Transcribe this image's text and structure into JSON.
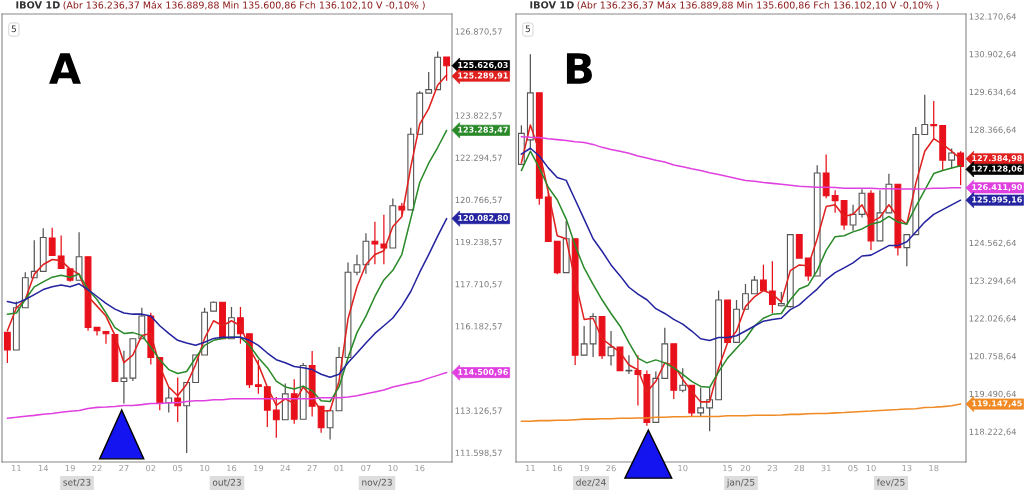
{
  "chart_data": [
    {
      "type": "candlestick",
      "title": "IBOV 1D",
      "categories": [
        null,
        "11",
        null,
        null,
        "14",
        null,
        null,
        "19",
        null,
        null,
        "22",
        null,
        null,
        "27",
        null,
        null,
        "02",
        null,
        null,
        "05",
        null,
        null,
        "10",
        null,
        null,
        "16",
        null,
        null,
        "19",
        null,
        null,
        "24",
        null,
        null,
        "27",
        null,
        null,
        "01",
        null,
        null,
        "07",
        null,
        null,
        "10",
        null,
        null,
        "16",
        null,
        null,
        null
      ],
      "ohlc": [
        [
          115960,
          115960,
          114850,
          115320
        ],
        [
          115320,
          117080,
          115320,
          116850
        ],
        [
          116850,
          118140,
          116850,
          117940
        ],
        [
          117940,
          119300,
          117940,
          118170
        ],
        [
          118170,
          119730,
          118170,
          119400
        ],
        [
          119380,
          119750,
          118750,
          118750
        ],
        [
          118730,
          119470,
          118280,
          118280
        ],
        [
          118260,
          118260,
          117790,
          117850
        ],
        [
          117850,
          119590,
          117850,
          118700
        ],
        [
          118700,
          118700,
          116020,
          116140
        ],
        [
          116140,
          116140,
          115850,
          116020
        ],
        [
          115990,
          115990,
          115550,
          115910
        ],
        [
          115880,
          115880,
          114180,
          114180
        ],
        [
          114180,
          115290,
          113380,
          114300
        ],
        [
          114300,
          115730,
          114200,
          115730
        ],
        [
          115730,
          116850,
          115730,
          116550
        ],
        [
          116550,
          116670,
          114790,
          115050
        ],
        [
          115050,
          115050,
          113140,
          113410
        ],
        [
          113410,
          113970,
          113050,
          113580
        ],
        [
          113580,
          114320,
          112710,
          113300
        ],
        [
          113300,
          114140,
          111590,
          114140
        ],
        [
          114140,
          115140,
          114140,
          115140
        ],
        [
          115140,
          116850,
          115140,
          116690
        ],
        [
          116730,
          117080,
          116730,
          117050
        ],
        [
          117050,
          117050,
          115730,
          115730
        ],
        [
          115730,
          116880,
          115730,
          116490
        ],
        [
          116490,
          116880,
          115550,
          115910
        ],
        [
          115910,
          115910,
          113940,
          114060
        ],
        [
          114060,
          114970,
          113730,
          114000
        ],
        [
          113990,
          113990,
          112530,
          113140
        ],
        [
          113140,
          113620,
          112140,
          112790
        ],
        [
          112790,
          114110,
          112790,
          113730
        ],
        [
          113730,
          114260,
          112650,
          112810
        ],
        [
          112810,
          114850,
          112810,
          114760
        ],
        [
          114760,
          115280,
          112910,
          113280
        ],
        [
          113280,
          113280,
          112320,
          112500
        ],
        [
          112500,
          113120,
          112080,
          113120
        ],
        [
          113120,
          115430,
          113120,
          115050
        ],
        [
          115050,
          118490,
          115050,
          118140
        ],
        [
          118140,
          118770,
          118030,
          118410
        ],
        [
          118410,
          119550,
          118080,
          119260
        ],
        [
          119260,
          119970,
          118430,
          119160
        ],
        [
          119160,
          120220,
          118430,
          119020
        ],
        [
          119020,
          120810,
          119020,
          120550
        ],
        [
          120530,
          120650,
          120200,
          120400
        ],
        [
          120400,
          123380,
          120400,
          123140
        ],
        [
          123140,
          124700,
          123140,
          124630
        ],
        [
          124630,
          125400,
          124630,
          124760
        ],
        [
          124760,
          126140,
          124760,
          125930
        ],
        [
          125940,
          125940,
          125080,
          125626.03
        ]
      ],
      "series": [
        {
          "type": "line",
          "color": "#e0201e",
          "value_labels": [
            null,
            null,
            null,
            null,
            null,
            null,
            null,
            null,
            null,
            null,
            null,
            null,
            null,
            null,
            null,
            null,
            null,
            null,
            null,
            null,
            null,
            null,
            null,
            null,
            null,
            null,
            null,
            null,
            null,
            null,
            null,
            null,
            null,
            null,
            null,
            null,
            null,
            null,
            null,
            null,
            null,
            null,
            null,
            null,
            null,
            null,
            null,
            null,
            null,
            "125.289,91"
          ],
          "values": [
            116020,
            116840,
            117150,
            118070,
            118420,
            118600,
            118560,
            118250,
            118070,
            117260,
            116910,
            116550,
            115850,
            114860,
            115140,
            115850,
            115920,
            114720,
            113980,
            113660,
            114080,
            114790,
            115740,
            116380,
            116200,
            116380,
            116200,
            115390,
            114790,
            113980,
            113310,
            113550,
            113380,
            113980,
            113620,
            113100,
            113130,
            114190,
            116450,
            117610,
            118420,
            118780,
            118920,
            119800,
            120150,
            121950,
            123510,
            124070,
            124920,
            125289.91
          ]
        },
        {
          "type": "line",
          "color": "#2a8a2a",
          "value_labels": [
            null,
            null,
            null,
            null,
            null,
            null,
            null,
            null,
            null,
            null,
            null,
            null,
            null,
            null,
            null,
            null,
            null,
            null,
            null,
            null,
            null,
            null,
            null,
            null,
            null,
            null,
            null,
            null,
            null,
            null,
            null,
            null,
            null,
            null,
            null,
            null,
            null,
            null,
            null,
            null,
            null,
            null,
            null,
            null,
            null,
            null,
            null,
            null,
            null,
            "123.283,47"
          ],
          "values": [
            116620,
            116660,
            117150,
            117610,
            117790,
            117960,
            118030,
            117960,
            118070,
            117510,
            117150,
            116660,
            116130,
            115920,
            115950,
            115850,
            115420,
            114970,
            114610,
            114470,
            114540,
            115040,
            115490,
            115670,
            115740,
            115780,
            115780,
            115490,
            115040,
            114680,
            114190,
            113980,
            113910,
            114010,
            113840,
            113480,
            113450,
            113980,
            115040,
            115950,
            116550,
            117260,
            117860,
            118210,
            118780,
            120080,
            121390,
            122090,
            122660,
            123283.47
          ]
        },
        {
          "type": "line",
          "color": "#2424a0",
          "value_labels": [
            null,
            null,
            null,
            null,
            null,
            null,
            null,
            null,
            null,
            null,
            null,
            null,
            null,
            null,
            null,
            null,
            null,
            null,
            null,
            null,
            null,
            null,
            null,
            null,
            null,
            null,
            null,
            null,
            null,
            null,
            null,
            null,
            null,
            null,
            null,
            null,
            null,
            null,
            null,
            null,
            null,
            null,
            null,
            null,
            null,
            null,
            null,
            null,
            null,
            "120.082,80"
          ],
          "values": [
            117080,
            117010,
            117150,
            117330,
            117510,
            117610,
            117680,
            117610,
            117720,
            117510,
            117260,
            117010,
            116800,
            116660,
            116620,
            116620,
            116550,
            116200,
            115920,
            115670,
            115570,
            115490,
            115600,
            115740,
            115780,
            115780,
            115780,
            115670,
            115490,
            115210,
            114970,
            114860,
            114720,
            114680,
            114610,
            114440,
            114330,
            114440,
            114860,
            115210,
            115570,
            115920,
            116200,
            116480,
            116910,
            117440,
            118140,
            118780,
            119450,
            120082.8
          ]
        },
        {
          "type": "line",
          "color": "#e040e0",
          "value_labels": [
            null,
            null,
            null,
            null,
            null,
            null,
            null,
            null,
            null,
            null,
            null,
            null,
            null,
            null,
            null,
            null,
            null,
            null,
            null,
            null,
            null,
            null,
            null,
            null,
            null,
            null,
            null,
            null,
            null,
            null,
            null,
            null,
            null,
            null,
            null,
            null,
            null,
            null,
            null,
            null,
            null,
            null,
            null,
            null,
            null,
            null,
            null,
            null,
            null,
            "114.500,96"
          ],
          "values": [
            112850,
            112880,
            112920,
            112950,
            112990,
            113020,
            113060,
            113100,
            113130,
            113200,
            113240,
            113250,
            113270,
            113310,
            113310,
            113340,
            113380,
            113380,
            113410,
            113410,
            113450,
            113480,
            113480,
            113520,
            113520,
            113550,
            113550,
            113550,
            113550,
            113550,
            113550,
            113550,
            113550,
            113550,
            113550,
            113590,
            113590,
            113590,
            113620,
            113660,
            113730,
            113800,
            113870,
            113980,
            114050,
            114120,
            114190,
            114300,
            114400,
            114500.96
          ]
        }
      ],
      "ylim": [
        111260,
        127500
      ],
      "yticks": [
        {
          "value": 126870.57,
          "label": "126.870,57"
        },
        {
          "value": 123822.57,
          "label": "123.822,57"
        },
        {
          "value": 122294.57,
          "label": "122.294,57"
        },
        {
          "value": 120766.57,
          "label": "120.766,57"
        },
        {
          "value": 119238.57,
          "label": "119.238,57"
        },
        {
          "value": 117710.57,
          "label": "117.710,57"
        },
        {
          "value": 116182.57,
          "label": "116.182,57"
        },
        {
          "value": 113126.57,
          "label": "113.126,57"
        },
        {
          "value": 111598.57,
          "label": "111.598,57"
        }
      ],
      "annotations": [
        "(Abr 136.236,37 Máx 136.889,88 Min 135.600,86 Fch 136.102,10 V -0,10% )",
        "5",
        "A",
        "set/23",
        "out/23",
        "nov/23",
        "125.626,03"
      ]
    },
    {
      "type": "candlestick",
      "title": "IBOV 1D",
      "categories": [
        null,
        "11",
        null,
        null,
        "16",
        null,
        null,
        "19",
        null,
        null,
        "26",
        null,
        null,
        null,
        null,
        null,
        null,
        null,
        "10",
        null,
        null,
        null,
        null,
        "15",
        null,
        "20",
        null,
        null,
        "23",
        null,
        null,
        "28",
        null,
        null,
        "31",
        null,
        null,
        "05",
        null,
        "10",
        null,
        null,
        null,
        "13",
        null,
        null,
        "18",
        null,
        null,
        null
      ],
      "ohlc": [
        [
          127200,
          128510,
          127200,
          128240
        ],
        [
          128020,
          130900,
          127690,
          129600
        ],
        [
          129600,
          129600,
          125840,
          126060
        ],
        [
          126100,
          126280,
          124610,
          124610
        ],
        [
          124610,
          124610,
          123510,
          123560
        ],
        [
          123560,
          125300,
          123560,
          124700
        ],
        [
          124700,
          124700,
          120460,
          120790
        ],
        [
          120790,
          121770,
          120790,
          121170
        ],
        [
          121170,
          122200,
          120730,
          122090
        ],
        [
          122090,
          122090,
          120660,
          120770
        ],
        [
          120770,
          121600,
          120440,
          121060
        ],
        [
          121060,
          121060,
          120270,
          120270
        ],
        [
          120260,
          120790,
          120160,
          120280
        ],
        [
          120270,
          120790,
          119100,
          120140
        ],
        [
          120140,
          120270,
          118420,
          118530
        ],
        [
          118530,
          120240,
          118530,
          120010
        ],
        [
          120010,
          121710,
          120010,
          121170
        ],
        [
          121170,
          121170,
          119320,
          119610
        ],
        [
          119610,
          120350,
          119540,
          119780
        ],
        [
          119780,
          119780,
          118720,
          118850
        ],
        [
          118850,
          119700,
          118720,
          119020
        ],
        [
          119020,
          119700,
          118230,
          119290
        ],
        [
          119290,
          122960,
          119290,
          122640
        ],
        [
          122640,
          122640,
          121220,
          121220
        ],
        [
          121220,
          122640,
          121220,
          122330
        ],
        [
          122330,
          123180,
          122330,
          122850
        ],
        [
          122850,
          123450,
          122850,
          123310
        ],
        [
          123310,
          123830,
          122960,
          122960
        ],
        [
          122940,
          123940,
          122200,
          122490
        ],
        [
          122450,
          122910,
          122420,
          122520
        ],
        [
          122420,
          124840,
          122390,
          124840
        ],
        [
          124840,
          124840,
          124050,
          124050
        ],
        [
          124050,
          124050,
          123290,
          123450
        ],
        [
          123450,
          127170,
          123450,
          126910
        ],
        [
          126910,
          127530,
          126060,
          126150
        ],
        [
          126150,
          126330,
          125570,
          125980
        ],
        [
          125980,
          125980,
          125000,
          125160
        ],
        [
          125160,
          125840,
          124970,
          125520
        ],
        [
          125520,
          126360,
          125410,
          126230
        ],
        [
          126230,
          126330,
          124320,
          124630
        ],
        [
          124630,
          126330,
          124630,
          125570
        ],
        [
          125570,
          126880,
          125570,
          126530
        ],
        [
          126530,
          126530,
          124140,
          124400
        ],
        [
          124400,
          124840,
          123780,
          124840
        ],
        [
          124840,
          128450,
          124840,
          128200
        ],
        [
          128200,
          129540,
          128200,
          128540
        ],
        [
          128540,
          129330,
          128070,
          128500
        ],
        [
          128500,
          128500,
          127010,
          127340
        ],
        [
          127340,
          127730,
          127040,
          127580
        ],
        [
          127580,
          127640,
          126500,
          127128.06
        ]
      ],
      "series": [
        {
          "type": "line",
          "color": "#e0201e",
          "value_labels": [
            null,
            null,
            null,
            null,
            null,
            null,
            null,
            null,
            null,
            null,
            null,
            null,
            null,
            null,
            null,
            null,
            null,
            null,
            null,
            null,
            null,
            null,
            null,
            null,
            null,
            null,
            null,
            null,
            null,
            null,
            null,
            null,
            null,
            null,
            null,
            null,
            null,
            null,
            null,
            null,
            null,
            null,
            null,
            null,
            null,
            null,
            null,
            null,
            null,
            "127.384,98"
          ],
          "values": [
            127250,
            128520,
            127640,
            126270,
            124800,
            124700,
            123300,
            121990,
            122030,
            121340,
            121110,
            120890,
            120460,
            120300,
            119550,
            119910,
            120530,
            120460,
            119970,
            119580,
            119220,
            119220,
            120360,
            121210,
            121600,
            122420,
            122750,
            122960,
            122840,
            122580,
            123630,
            123820,
            123790,
            124700,
            125780,
            125840,
            125450,
            125520,
            125840,
            125260,
            125420,
            125840,
            125420,
            125190,
            126560,
            127640,
            128060,
            127870,
            127640,
            127384.98
          ]
        },
        {
          "type": "line",
          "color": "#2a8a2a",
          "values": [
            126990,
            127640,
            127080,
            126430,
            126010,
            125360,
            124470,
            123720,
            123170,
            122650,
            122190,
            121770,
            121210,
            120690,
            120530,
            120630,
            120530,
            120360,
            120140,
            119910,
            119740,
            119710,
            120230,
            120690,
            121020,
            121340,
            121770,
            122030,
            122160,
            122190,
            122650,
            123010,
            123140,
            123630,
            124310,
            124770,
            124800,
            124930,
            125030,
            125190,
            125260,
            125450,
            125260,
            125190,
            125780,
            126330,
            126890,
            126990,
            127080,
            127150
          ]
        },
        {
          "type": "line",
          "color": "#2424a0",
          "value_labels": [
            null,
            null,
            null,
            null,
            null,
            null,
            null,
            null,
            null,
            null,
            null,
            null,
            null,
            null,
            null,
            null,
            null,
            null,
            null,
            null,
            null,
            null,
            null,
            null,
            null,
            null,
            null,
            null,
            null,
            null,
            null,
            null,
            null,
            null,
            null,
            null,
            null,
            null,
            null,
            null,
            null,
            null,
            null,
            null,
            null,
            null,
            null,
            null,
            null,
            "125.995,16"
          ],
          "values": [
            127540,
            127740,
            127480,
            127080,
            126760,
            126660,
            126010,
            125360,
            124700,
            124280,
            123820,
            123460,
            123070,
            122840,
            122650,
            122350,
            122190,
            121990,
            121830,
            121600,
            121340,
            121280,
            121380,
            121380,
            121440,
            121600,
            121770,
            121930,
            121990,
            122030,
            122320,
            122480,
            122750,
            123010,
            123330,
            123560,
            123720,
            123890,
            124120,
            124150,
            124310,
            124470,
            124470,
            124600,
            124930,
            125260,
            125520,
            125680,
            125840,
            125995.16
          ]
        },
        {
          "type": "line",
          "color": "#e040e0",
          "value_labels": [
            null,
            null,
            null,
            null,
            null,
            null,
            null,
            null,
            null,
            null,
            null,
            null,
            null,
            null,
            null,
            null,
            null,
            null,
            null,
            null,
            null,
            null,
            null,
            null,
            null,
            null,
            null,
            null,
            null,
            null,
            null,
            null,
            null,
            null,
            null,
            null,
            null,
            null,
            null,
            null,
            null,
            null,
            null,
            null,
            null,
            null,
            null,
            null,
            null,
            "126.411,90"
          ],
          "values": [
            128130,
            128110,
            128100,
            128060,
            128030,
            128000,
            127960,
            127930,
            127870,
            127770,
            127700,
            127640,
            127570,
            127480,
            127410,
            127340,
            127280,
            127180,
            127120,
            127050,
            126990,
            126920,
            126860,
            126790,
            126720,
            126660,
            126630,
            126590,
            126560,
            126530,
            126500,
            126460,
            126450,
            126430,
            126430,
            126420,
            126400,
            126400,
            126400,
            126400,
            126380,
            126380,
            126370,
            126370,
            126370,
            126380,
            126400,
            126400,
            126410,
            126411.9
          ]
        },
        {
          "type": "line",
          "color": "#f08a24",
          "value_labels": [
            null,
            null,
            null,
            null,
            null,
            null,
            null,
            null,
            null,
            null,
            null,
            null,
            null,
            null,
            null,
            null,
            null,
            null,
            null,
            null,
            null,
            null,
            null,
            null,
            null,
            null,
            null,
            null,
            null,
            null,
            null,
            null,
            null,
            null,
            null,
            null,
            null,
            null,
            null,
            null,
            null,
            null,
            null,
            null,
            null,
            null,
            null,
            null,
            null,
            "119.147,45"
          ],
          "values": [
            118570,
            118570,
            118590,
            118590,
            118600,
            118600,
            118620,
            118640,
            118640,
            118650,
            118650,
            118670,
            118670,
            118680,
            118680,
            118700,
            118700,
            118720,
            118720,
            118730,
            118730,
            118730,
            118730,
            118750,
            118750,
            118750,
            118770,
            118770,
            118770,
            118780,
            118800,
            118800,
            118820,
            118830,
            118830,
            118850,
            118860,
            118880,
            118900,
            118910,
            118930,
            118950,
            118960,
            118980,
            118990,
            119030,
            119040,
            119060,
            119090,
            119147.45
          ]
        }
      ],
      "ylim": [
        117200,
        132250
      ],
      "yticks": [
        {
          "value": 132170.64,
          "label": "132.170,64"
        },
        {
          "value": 130902.64,
          "label": "130.902,64"
        },
        {
          "value": 129634.64,
          "label": "129.634,64"
        },
        {
          "value": 128366.64,
          "label": "128.366,64"
        },
        {
          "value": 124562.64,
          "label": "124.562,64"
        },
        {
          "value": 123294.64,
          "label": "123.294,64"
        },
        {
          "value": 122026.64,
          "label": "122.026,64"
        },
        {
          "value": 120758.64,
          "label": "120.758,64"
        },
        {
          "value": 119490.64,
          "label": "119.490,64"
        },
        {
          "value": 118222.64,
          "label": "118.222,64"
        }
      ],
      "annotations": [
        "(Abr 136.236,37 Máx 136.889,88 Min 135.600,86 Fch 136.102,10 V -0,10% )",
        "5",
        "B",
        "dez/24",
        "jan/25",
        "fev/25",
        "127.128,06"
      ]
    }
  ]
}
